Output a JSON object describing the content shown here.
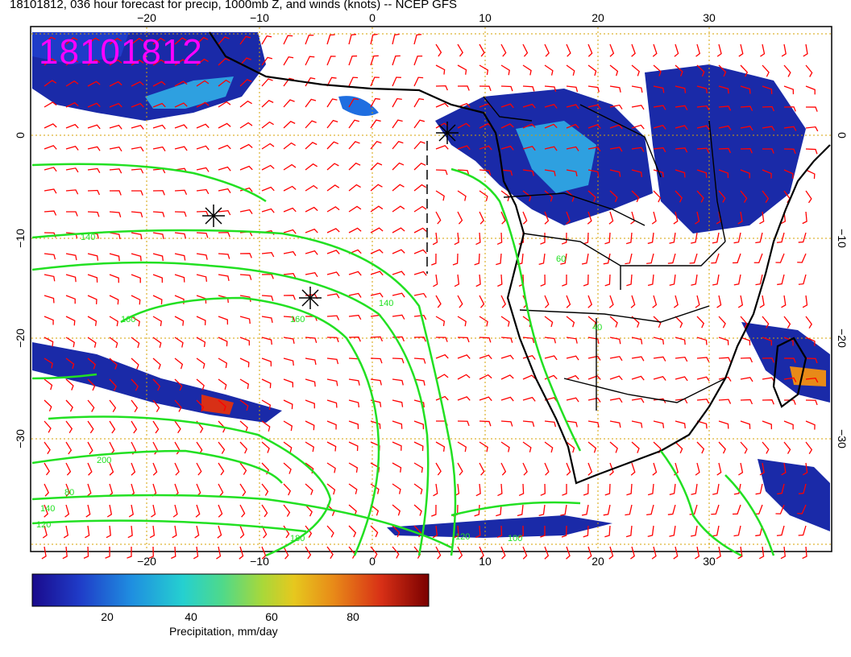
{
  "title": "18101812, 036 hour forecast for precip, 1000mb Z, and winds (knots) -- NCEP GFS",
  "stamp": "18101812",
  "axes": {
    "lon_ticks": [
      "−20",
      "−10",
      "0",
      "10",
      "20",
      "30"
    ],
    "lat_ticks": [
      "0",
      "−10",
      "−20",
      "−30"
    ]
  },
  "contour_labels": [
    "140",
    "160",
    "200",
    "180",
    "160",
    "140",
    "120",
    "100",
    "80",
    "60",
    "40",
    "120",
    "140"
  ],
  "colorbar": {
    "label": "Precipitation, mm/day",
    "ticks": [
      "20",
      "40",
      "60",
      "80"
    ],
    "colors": [
      "#1a0a8c",
      "#1f3cc8",
      "#1f8ee0",
      "#25d0d0",
      "#4fd98a",
      "#a8d83a",
      "#e6c81e",
      "#e88a18",
      "#d83016",
      "#7a0000"
    ]
  },
  "colors": {
    "precip_low": "#1a2aa8",
    "precip_mid": "#2ea0e0",
    "contour": "#22e022",
    "barb": "#ff0000",
    "grid": "#d4a000",
    "stamp": "#ff00ff"
  }
}
